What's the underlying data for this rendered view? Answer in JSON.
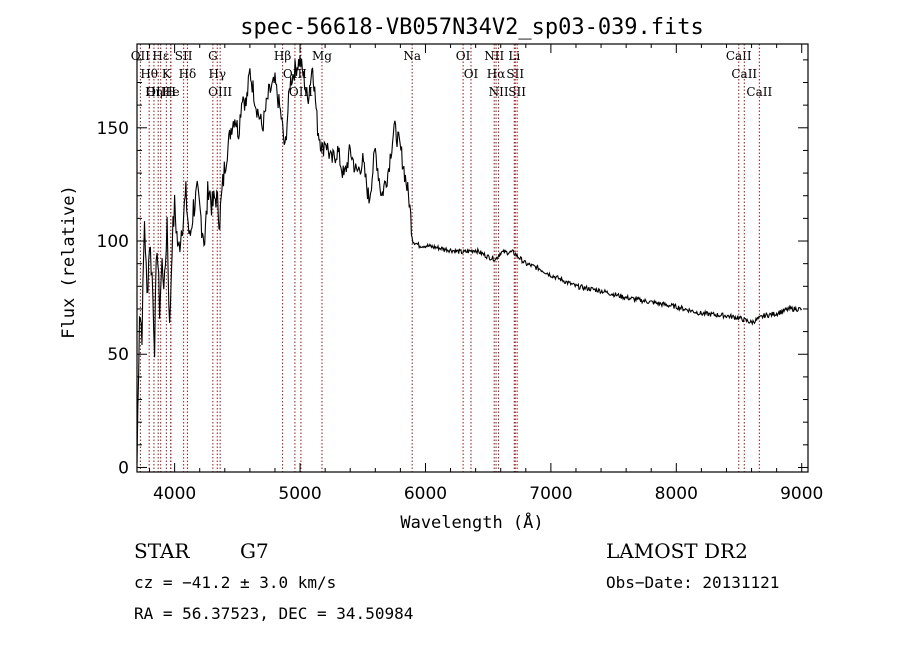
{
  "chart_data": {
    "type": "line",
    "title": "spec-56618-VB057N34V2_sp03-039.fits",
    "xlabel": "Wavelength (Å)",
    "ylabel": "Flux (relative)",
    "xlim": [
      3700,
      9050
    ],
    "ylim": [
      -2,
      187
    ],
    "x_ticks": [
      4000,
      5000,
      6000,
      7000,
      8000,
      9000
    ],
    "y_ticks": [
      0,
      50,
      100,
      150
    ],
    "grid": false,
    "series": [
      {
        "x": [
          3700,
          3720,
          3740,
          3760,
          3780,
          3800,
          3820,
          3840,
          3860,
          3880,
          3900,
          3920,
          3940,
          3960,
          3980,
          4000,
          4030,
          4060,
          4090,
          4120,
          4150,
          4180,
          4210,
          4240,
          4270,
          4300,
          4330,
          4360,
          4390,
          4420,
          4450,
          4480,
          4510,
          4540,
          4570,
          4600,
          4650,
          4700,
          4750,
          4800,
          4850,
          4880,
          4920,
          4960,
          5000,
          5030,
          5060,
          5100,
          5140,
          5180,
          5200,
          5250,
          5300,
          5350,
          5400,
          5450,
          5500,
          5550,
          5600,
          5650,
          5700,
          5750,
          5780,
          5810,
          5840,
          5870,
          5900,
          5950,
          6000,
          6100,
          6200,
          6300,
          6400,
          6500,
          6560,
          6600,
          6700,
          6800,
          6900,
          7000,
          7200,
          7400,
          7600,
          7800,
          8000,
          8200,
          8400,
          8500,
          8600,
          8700,
          8800,
          8900,
          9000
        ],
        "y": [
          2,
          70,
          60,
          110,
          75,
          100,
          85,
          55,
          100,
          70,
          90,
          80,
          110,
          60,
          100,
          115,
          95,
          108,
          120,
          100,
          115,
          120,
          110,
          100,
          125,
          115,
          120,
          110,
          128,
          140,
          150,
          155,
          148,
          165,
          160,
          175,
          160,
          150,
          165,
          170,
          155,
          140,
          170,
          176,
          180,
          172,
          162,
          178,
          150,
          140,
          145,
          135,
          140,
          128,
          140,
          130,
          135,
          118,
          140,
          120,
          130,
          150,
          145,
          138,
          128,
          118,
          100,
          98,
          98,
          97,
          96,
          95,
          96,
          93,
          92,
          95,
          95,
          90,
          88,
          85,
          80,
          78,
          75,
          73,
          71,
          68,
          67,
          66,
          64,
          67,
          68,
          70,
          70
        ]
      }
    ],
    "lines": [
      {
        "label": "Hθ",
        "x": 3797
      },
      {
        "label": "OII",
        "x": 3727
      },
      {
        "label": "OIII",
        "x": 3869
      },
      {
        "label": "Hε",
        "x": 3889
      },
      {
        "label": "Hη",
        "x": 3835
      },
      {
        "label": "He",
        "x": 3970
      },
      {
        "label": "K",
        "x": 3934
      },
      {
        "label": "H",
        "x": 3969
      },
      {
        "label": "Hδ",
        "x": 4102
      },
      {
        "label": "SII",
        "x": 4072
      },
      {
        "label": "OIII",
        "x": 4363
      },
      {
        "label": "Hγ",
        "x": 4340
      },
      {
        "label": "G",
        "x": 4305
      },
      {
        "label": "OIII",
        "x": 5007
      },
      {
        "label": "OIII",
        "x": 4959
      },
      {
        "label": "Hβ",
        "x": 4861
      },
      {
        "label": "Mg",
        "x": 5175
      },
      {
        "label": "Na",
        "x": 5894
      },
      {
        "label": "OI",
        "x": 6300
      },
      {
        "label": "OI",
        "x": 6363
      },
      {
        "label": "Hα",
        "x": 6563
      },
      {
        "label": "NII",
        "x": 6548
      },
      {
        "label": "NII",
        "x": 6583
      },
      {
        "label": "SII",
        "x": 6716
      },
      {
        "label": "Li",
        "x": 6708
      },
      {
        "label": "SII",
        "x": 6731
      },
      {
        "label": "CaII",
        "x": 8542
      },
      {
        "label": "CaII",
        "x": 8498
      },
      {
        "label": "CaII",
        "x": 8662
      }
    ]
  },
  "info": {
    "class_label": "STAR",
    "subclass_label": "G7",
    "survey": "LAMOST DR2",
    "cz": "cz = −41.2 ± 3.0 km/s",
    "obs_date": "Obs−Date: 20131121",
    "coords": "RA =  56.37523, DEC =  34.50984"
  },
  "colors": {
    "line": "#000000",
    "marker": "#8b1a1a",
    "axes": "#000000"
  }
}
